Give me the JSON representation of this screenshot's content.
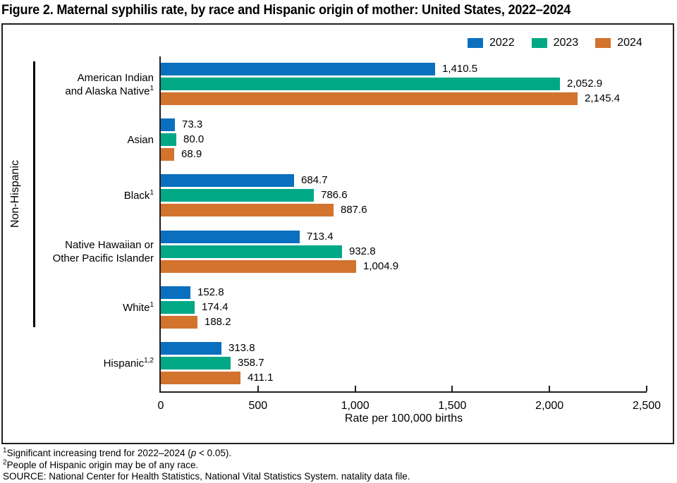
{
  "chart_data": {
    "type": "bar",
    "orientation": "horizontal",
    "title": "Figure 2. Maternal syphilis rate, by race and Hispanic origin of mother: United States, 2022–2024",
    "xlabel": "Rate per 100,000 births",
    "xlim": [
      0,
      2500
    ],
    "grid": false,
    "legend_position": "top-right",
    "group_bracket_label": "Non-Hispanic",
    "x_ticks": [
      {
        "value": 0,
        "label": "0"
      },
      {
        "value": 500,
        "label": "500"
      },
      {
        "value": 1000,
        "label": "1,000"
      },
      {
        "value": 1500,
        "label": "1,500"
      },
      {
        "value": 2000,
        "label": "2,000"
      },
      {
        "value": 2500,
        "label": "2,500"
      }
    ],
    "categories": [
      {
        "lines": [
          "American Indian",
          "and Alaska Native"
        ],
        "sup": "1"
      },
      {
        "lines": [
          "Asian"
        ],
        "sup": ""
      },
      {
        "lines": [
          "Black"
        ],
        "sup": "1"
      },
      {
        "lines": [
          "Native Hawaiian or",
          "Other Pacific Islander"
        ],
        "sup": ""
      },
      {
        "lines": [
          "White"
        ],
        "sup": "1"
      },
      {
        "lines": [
          "Hispanic"
        ],
        "sup": "1,2"
      }
    ],
    "series": [
      {
        "name": "2022",
        "color": "#0a6fbe",
        "values": [
          1410.5,
          73.3,
          684.7,
          713.4,
          152.8,
          313.8
        ],
        "labels": [
          "1,410.5",
          "73.3",
          "684.7",
          "713.4",
          "152.8",
          "313.8"
        ]
      },
      {
        "name": "2023",
        "color": "#00a886",
        "values": [
          2052.9,
          80.0,
          786.6,
          932.8,
          174.4,
          358.7
        ],
        "labels": [
          "2,052.9",
          "80.0",
          "786.6",
          "932.8",
          "174.4",
          "358.7"
        ]
      },
      {
        "name": "2024",
        "color": "#d2732e",
        "values": [
          2145.4,
          68.9,
          887.6,
          1004.9,
          188.2,
          411.1
        ],
        "labels": [
          "2,145.4",
          "68.9",
          "887.6",
          "1,004.9",
          "188.2",
          "411.1"
        ]
      }
    ]
  },
  "footnotes": [
    {
      "sup": "1",
      "pre": "Significant increasing trend for 2022–2024 (",
      "italic": "p",
      "post": " < 0.05)."
    },
    {
      "sup": "2",
      "pre": "People of Hispanic origin may be of any race.",
      "italic": "",
      "post": ""
    },
    {
      "sup": "",
      "pre": "SOURCE: National Center for Health Statistics, National Vital Statistics System. natality data file.",
      "italic": "",
      "post": ""
    }
  ],
  "colors": {
    "axis": "#231f20",
    "frame": "#231f20",
    "bracket": "#000000"
  }
}
